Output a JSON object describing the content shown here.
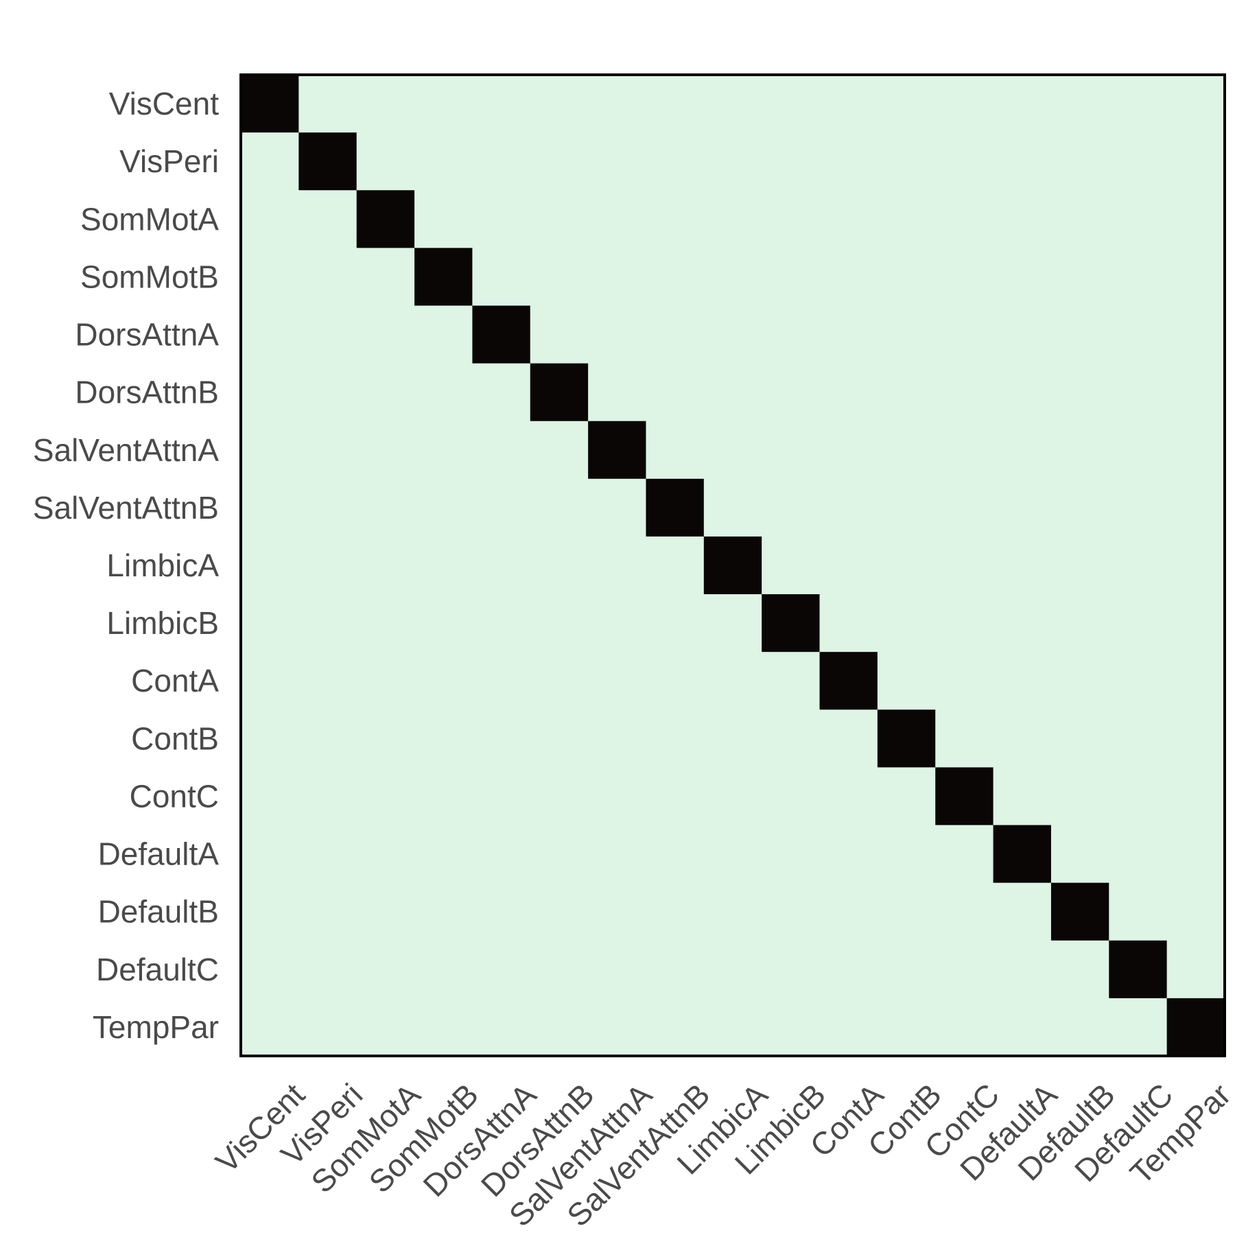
{
  "chart_data": {
    "type": "heatmap",
    "title": "",
    "xlabel": "",
    "ylabel": "",
    "row_labels": [
      "VisCent",
      "VisPeri",
      "SomMotA",
      "SomMotB",
      "DorsAttnA",
      "DorsAttnB",
      "SalVentAttnA",
      "SalVentAttnB",
      "LimbicA",
      "LimbicB",
      "ContA",
      "ContB",
      "ContC",
      "DefaultA",
      "DefaultB",
      "DefaultC",
      "TempPar"
    ],
    "col_labels": [
      "VisCent",
      "VisPeri",
      "SomMotA",
      "SomMotB",
      "DorsAttnA",
      "DorsAttnB",
      "SalVentAttnA",
      "SalVentAttnB",
      "LimbicA",
      "LimbicB",
      "ContA",
      "ContB",
      "ContC",
      "DefaultA",
      "DefaultB",
      "DefaultC",
      "TempPar"
    ],
    "values": [
      [
        1,
        0,
        0,
        0,
        0,
        0,
        0,
        0,
        0,
        0,
        0,
        0,
        0,
        0,
        0,
        0,
        0
      ],
      [
        0,
        1,
        0,
        0,
        0,
        0,
        0,
        0,
        0,
        0,
        0,
        0,
        0,
        0,
        0,
        0,
        0
      ],
      [
        0,
        0,
        1,
        0,
        0,
        0,
        0,
        0,
        0,
        0,
        0,
        0,
        0,
        0,
        0,
        0,
        0
      ],
      [
        0,
        0,
        0,
        1,
        0,
        0,
        0,
        0,
        0,
        0,
        0,
        0,
        0,
        0,
        0,
        0,
        0
      ],
      [
        0,
        0,
        0,
        0,
        1,
        0,
        0,
        0,
        0,
        0,
        0,
        0,
        0,
        0,
        0,
        0,
        0
      ],
      [
        0,
        0,
        0,
        0,
        0,
        1,
        0,
        0,
        0,
        0,
        0,
        0,
        0,
        0,
        0,
        0,
        0
      ],
      [
        0,
        0,
        0,
        0,
        0,
        0,
        1,
        0,
        0,
        0,
        0,
        0,
        0,
        0,
        0,
        0,
        0
      ],
      [
        0,
        0,
        0,
        0,
        0,
        0,
        0,
        1,
        0,
        0,
        0,
        0,
        0,
        0,
        0,
        0,
        0
      ],
      [
        0,
        0,
        0,
        0,
        0,
        0,
        0,
        0,
        1,
        0,
        0,
        0,
        0,
        0,
        0,
        0,
        0
      ],
      [
        0,
        0,
        0,
        0,
        0,
        0,
        0,
        0,
        0,
        1,
        0,
        0,
        0,
        0,
        0,
        0,
        0
      ],
      [
        0,
        0,
        0,
        0,
        0,
        0,
        0,
        0,
        0,
        0,
        1,
        0,
        0,
        0,
        0,
        0,
        0
      ],
      [
        0,
        0,
        0,
        0,
        0,
        0,
        0,
        0,
        0,
        0,
        0,
        1,
        0,
        0,
        0,
        0,
        0
      ],
      [
        0,
        0,
        0,
        0,
        0,
        0,
        0,
        0,
        0,
        0,
        0,
        0,
        1,
        0,
        0,
        0,
        0
      ],
      [
        0,
        0,
        0,
        0,
        0,
        0,
        0,
        0,
        0,
        0,
        0,
        0,
        0,
        1,
        0,
        0,
        0
      ],
      [
        0,
        0,
        0,
        0,
        0,
        0,
        0,
        0,
        0,
        0,
        0,
        0,
        0,
        0,
        1,
        0,
        0
      ],
      [
        0,
        0,
        0,
        0,
        0,
        0,
        0,
        0,
        0,
        0,
        0,
        0,
        0,
        0,
        0,
        1,
        0
      ],
      [
        0,
        0,
        0,
        0,
        0,
        0,
        0,
        0,
        0,
        0,
        0,
        0,
        0,
        0,
        0,
        0,
        1
      ]
    ],
    "colors": {
      "low": "#def4e5",
      "high": "#0a0606",
      "frame": "#000000",
      "label": "#4a4a4a"
    },
    "grid": false,
    "legend": "none"
  }
}
